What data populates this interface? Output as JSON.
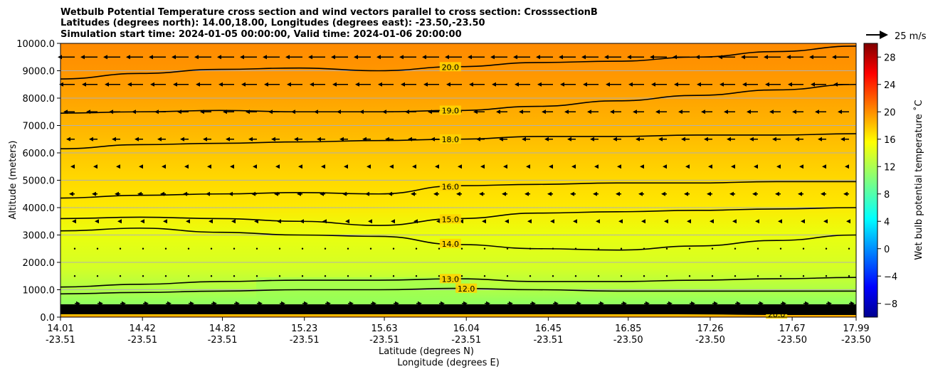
{
  "chart_data": {
    "type": "contour",
    "title_lines": [
      "Wetbulb Potential Temperature cross section and wind vectors parallel to cross section: CrosssectionB",
      "Latitudes (degrees north): 14.00,18.00, Longitudes (degrees east): -23.50,-23.50",
      "Simulation start time: 2024-01-05 00:00:00, Valid time: 2024-01-06 20:00:00"
    ],
    "xlabel_lat": "Latitude (degrees N)",
    "xlabel_lon": "Longitude (degrees E)",
    "ylabel": "Altitude (meters)",
    "xlim": [
      14.01,
      17.99
    ],
    "ylim": [
      0,
      10000
    ],
    "x_ticks": [
      {
        "lat": "14.01",
        "lon": "-23.51",
        "v": 14.01
      },
      {
        "lat": "14.42",
        "lon": "-23.51",
        "v": 14.42
      },
      {
        "lat": "14.82",
        "lon": "-23.51",
        "v": 14.82
      },
      {
        "lat": "15.23",
        "lon": "-23.51",
        "v": 15.23
      },
      {
        "lat": "15.63",
        "lon": "-23.51",
        "v": 15.63
      },
      {
        "lat": "16.04",
        "lon": "-23.51",
        "v": 16.04
      },
      {
        "lat": "16.45",
        "lon": "-23.51",
        "v": 16.45
      },
      {
        "lat": "16.85",
        "lon": "-23.50",
        "v": 16.85
      },
      {
        "lat": "17.26",
        "lon": "-23.50",
        "v": 17.26
      },
      {
        "lat": "17.67",
        "lon": "-23.50",
        "v": 17.67
      },
      {
        "lat": "17.99",
        "lon": "-23.50",
        "v": 17.99
      }
    ],
    "y_ticks": [
      "0.0",
      "1000.0",
      "2000.0",
      "3000.0",
      "4000.0",
      "5000.0",
      "6000.0",
      "7000.0",
      "8000.0",
      "9000.0",
      "10000.0"
    ],
    "grid": "horizontal",
    "colorbar": {
      "label": "Wet bulb potential temperature $^\\circ$C",
      "label_text": "Wet bulb potential temperature ˚C",
      "range": [
        -10,
        30
      ],
      "ticks": [
        "−8",
        "−4",
        "0",
        "4",
        "8",
        "12",
        "16",
        "20",
        "24",
        "28"
      ],
      "colormap": "jet"
    },
    "quiver_key": "25 m/s",
    "contour_levels": [
      {
        "value": 20.0,
        "label": "20.0",
        "altitude": [
          8700,
          8900,
          9050,
          9100,
          9000,
          9150,
          9300,
          9350,
          9500,
          9700,
          9900
        ]
      },
      {
        "value": 19.0,
        "label": "19.0",
        "altitude": [
          7450,
          7500,
          7550,
          7500,
          7500,
          7550,
          7700,
          7900,
          8100,
          8300,
          8500
        ]
      },
      {
        "value": 18.0,
        "label": "18.0",
        "altitude": [
          6150,
          6300,
          6350,
          6400,
          6450,
          6500,
          6600,
          6600,
          6650,
          6650,
          6700
        ]
      },
      {
        "value": 16.0,
        "label": "16.0",
        "altitude": [
          4350,
          4450,
          4500,
          4550,
          4500,
          4800,
          4850,
          4900,
          4900,
          4950,
          4950
        ]
      },
      {
        "value": 15.0,
        "label": "15.0",
        "altitude": [
          3600,
          3650,
          3600,
          3500,
          3350,
          3600,
          3800,
          3850,
          3900,
          3950,
          4000
        ]
      },
      {
        "value": 14.0,
        "label": "14.0",
        "altitude": [
          3150,
          3250,
          3100,
          3000,
          2950,
          2650,
          2500,
          2450,
          2600,
          2800,
          3000
        ]
      },
      {
        "value": 13.0,
        "label": "13.0",
        "altitude": [
          1100,
          1200,
          1300,
          1350,
          1350,
          1400,
          1300,
          1300,
          1350,
          1400,
          1450
        ]
      },
      {
        "value": 12.0,
        "label": "12.0",
        "altitude": [
          850,
          900,
          950,
          1000,
          1000,
          1050,
          1000,
          950,
          950,
          950,
          950
        ]
      },
      {
        "value": 20.0,
        "label": "20.0",
        "altitude": [
          200,
          180,
          150,
          150,
          180,
          220,
          200,
          150,
          120,
          100,
          100
        ]
      }
    ],
    "wind_u_ms": [
      {
        "altitude": 9500,
        "u": -12
      },
      {
        "altitude": 8500,
        "u": -11
      },
      {
        "altitude": 7500,
        "u": -8
      },
      {
        "altitude": 6500,
        "u": -6
      },
      {
        "altitude": 5500,
        "u": -3
      },
      {
        "altitude": 4500,
        "u": -4
      },
      {
        "altitude": 3500,
        "u": -2
      },
      {
        "altitude": 2500,
        "u": -1
      },
      {
        "altitude": 1500,
        "u": -1
      },
      {
        "altitude": 500,
        "u": 4
      }
    ]
  }
}
